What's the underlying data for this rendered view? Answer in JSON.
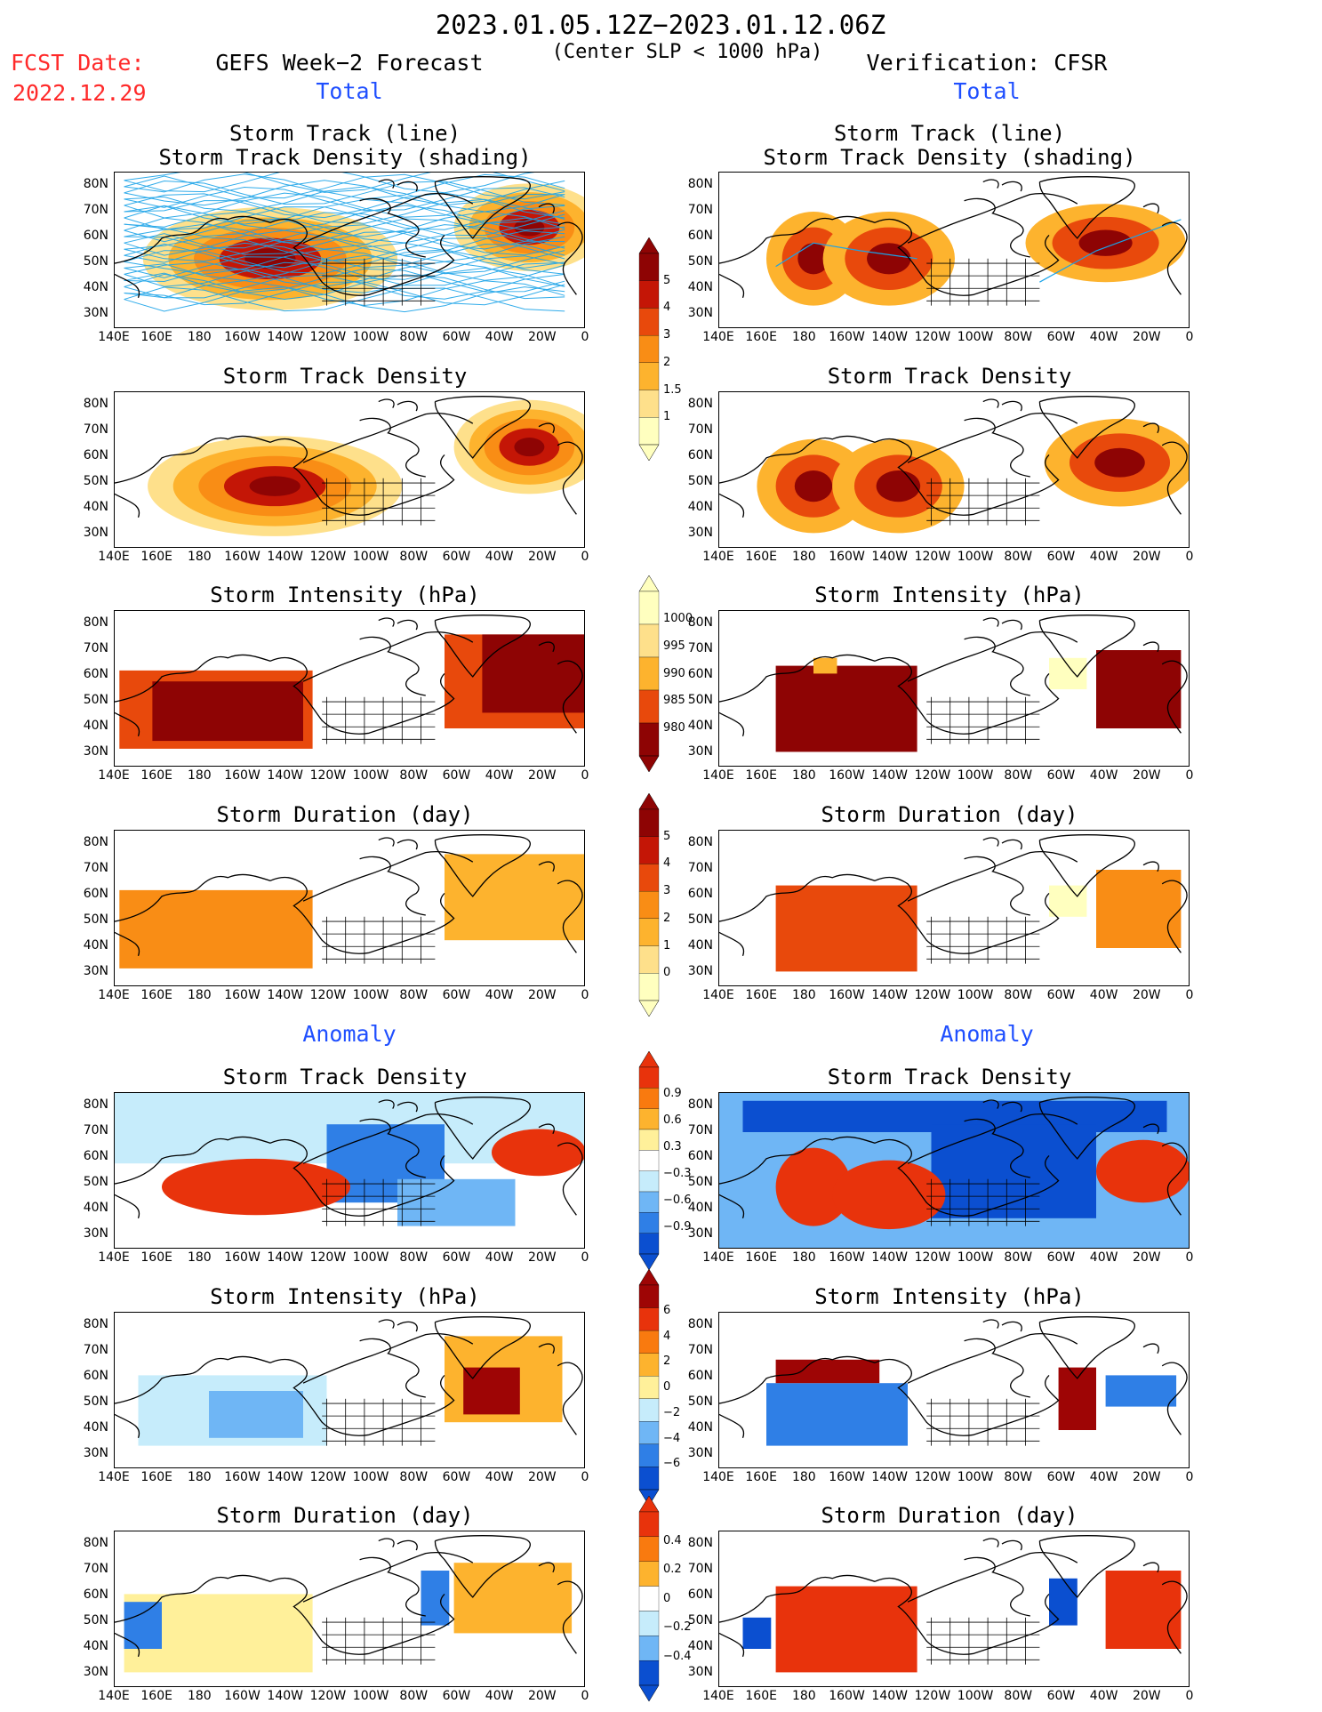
{
  "header": {
    "date_range": "2023.01.05.12Z−2023.01.12.06Z",
    "criteria": "(Center SLP < 1000 hPa)",
    "fcst_label": "FCST Date:",
    "fcst_date": "2022.12.29",
    "left_title": "GEFS Week−2 Forecast",
    "right_title": "Verification: CFSR",
    "total_label": "Total",
    "anomaly_label": "Anomaly"
  },
  "panel_titles": {
    "track_line_1": "Storm Track (line)",
    "track_line_2": "Storm Track Density (shading)",
    "density": "Storm Track Density",
    "intensity": "Storm Intensity (hPa)",
    "duration": "Storm Duration (day)"
  },
  "axes": {
    "x_ticks": [
      "140E",
      "160E",
      "180",
      "160W",
      "140W",
      "120W",
      "100W",
      "80W",
      "60W",
      "40W",
      "20W",
      "0"
    ],
    "y_ticks": [
      "80N",
      "70N",
      "60N",
      "50N",
      "40N",
      "30N"
    ]
  },
  "colorbars": {
    "density": [
      "5",
      "4",
      "3",
      "2",
      "1.5",
      "1"
    ],
    "intensity": [
      "1000",
      "995",
      "990",
      "985",
      "980"
    ],
    "duration": [
      "5",
      "4",
      "3",
      "2",
      "1",
      "0"
    ],
    "density_anom": [
      "0.9",
      "0.6",
      "0.3",
      "−0.3",
      "−0.6",
      "−0.9"
    ],
    "intensity_anom": [
      "6",
      "4",
      "2",
      "0",
      "−2",
      "−4",
      "−6"
    ],
    "duration_anom": [
      "0.4",
      "0.2",
      "0",
      "−0.2",
      "−0.4"
    ]
  },
  "colors": {
    "total_scale": [
      "#ffffbf",
      "#fee08b",
      "#fdb32e",
      "#f98d15",
      "#e8490c",
      "#c41606",
      "#8e0404"
    ],
    "anom_scale": [
      "#0b4fd0",
      "#2f7fe6",
      "#6fb6f5",
      "#c6ecfb",
      "#ffffff",
      "#fff09a",
      "#fdb32e",
      "#f97a0f",
      "#e8330c",
      "#9e0505"
    ],
    "track_lines": "#1aa3e8",
    "land_outline": "#000000"
  }
}
